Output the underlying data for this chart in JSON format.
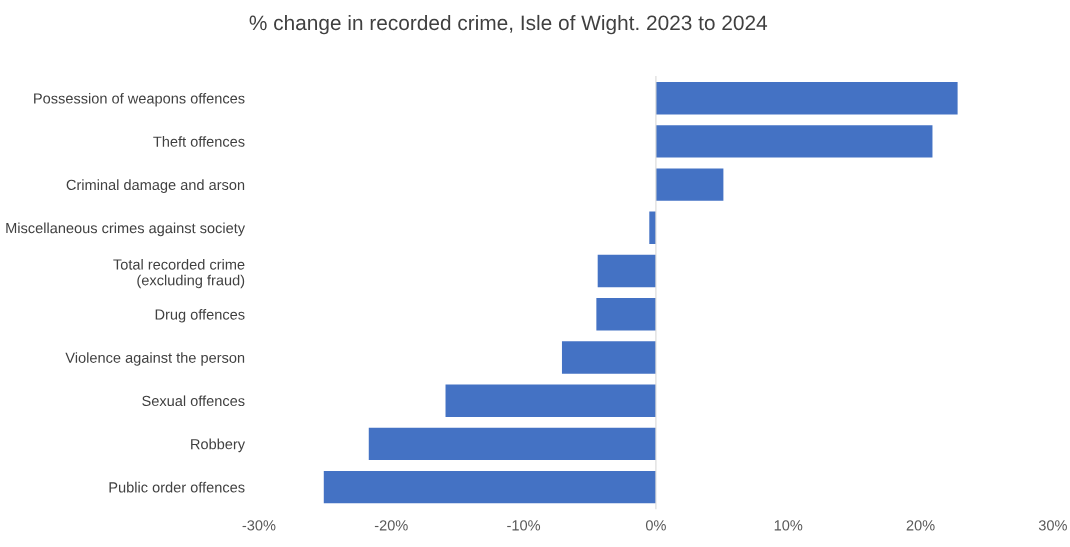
{
  "chart_data": {
    "type": "bar",
    "orientation": "horizontal",
    "title": "% change in recorded crime, Isle of Wight. 2023 to 2024",
    "categories": [
      "Possession of weapons offences",
      "Theft offences",
      "Criminal damage and arson",
      "Miscellaneous crimes against society",
      "Total recorded crime\n(excluding fraud)",
      "Drug offences",
      "Violence against the person",
      "Sexual offences",
      "Robbery",
      "Public order offences"
    ],
    "values": [
      22.8,
      20.9,
      5.1,
      -0.5,
      -4.4,
      -4.5,
      -7.1,
      -15.9,
      -21.7,
      -25.1
    ],
    "color": "#4472c4",
    "xlim": [
      -30,
      30
    ],
    "xticks": [
      {
        "value": -30,
        "label": "-30%"
      },
      {
        "value": -20,
        "label": "-20%"
      },
      {
        "value": -10,
        "label": "-10%"
      },
      {
        "value": 0,
        "label": "0%"
      },
      {
        "value": 10,
        "label": "10%"
      },
      {
        "value": 20,
        "label": "20%"
      },
      {
        "value": 30,
        "label": "30%"
      }
    ],
    "legend": false
  }
}
